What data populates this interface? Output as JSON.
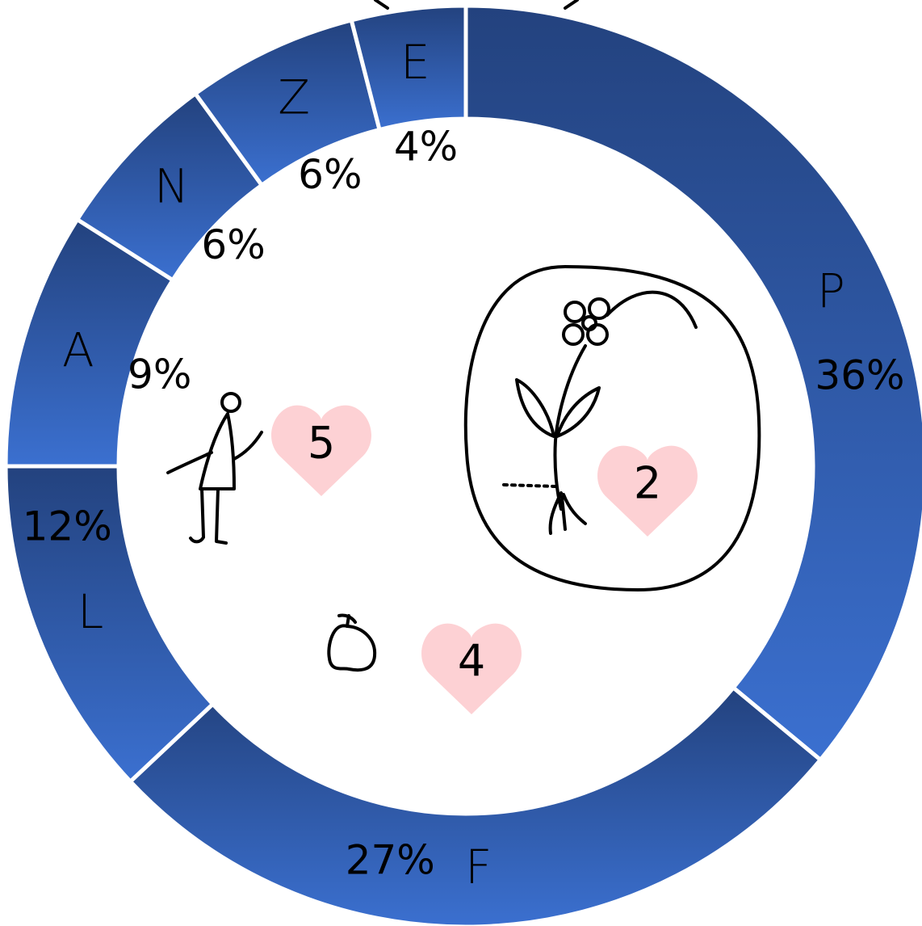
{
  "chart_data": {
    "type": "donut",
    "categories": [
      "P",
      "F",
      "L",
      "A",
      "N",
      "Z",
      "E"
    ],
    "values": [
      36,
      27,
      12,
      9,
      6,
      6,
      4
    ],
    "value_labels": [
      "36%",
      "27%",
      "12%",
      "9%",
      "6%",
      "6%",
      "4%"
    ],
    "color": "#2f5aa8",
    "annotations": [
      "5",
      "4",
      "2"
    ]
  }
}
